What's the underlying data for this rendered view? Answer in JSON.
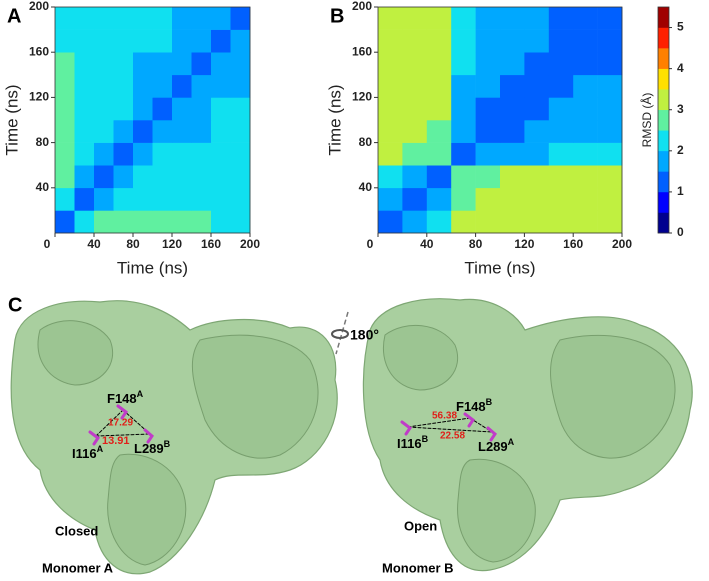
{
  "chart_data": [
    {
      "type": "heatmap",
      "panel_label": "A",
      "xlabel": "Time (ns)",
      "ylabel": "Time (ns)",
      "x": [
        10,
        30,
        50,
        70,
        90,
        110,
        130,
        150,
        170,
        190
      ],
      "y": [
        10,
        30,
        50,
        70,
        90,
        110,
        130,
        150,
        170,
        190
      ],
      "xlim": [
        0,
        200
      ],
      "ylim": [
        0,
        200
      ],
      "xticks": [
        0,
        40,
        80,
        120,
        160,
        200
      ],
      "yticks": [
        40,
        80,
        120,
        160,
        200
      ],
      "z": [
        [
          1.0,
          2.4,
          2.6,
          2.6,
          2.5,
          2.6,
          2.5,
          2.6,
          2.4,
          2.4
        ],
        [
          2.4,
          1.0,
          1.8,
          2.0,
          2.2,
          2.1,
          2.2,
          2.1,
          2.2,
          2.2
        ],
        [
          2.6,
          1.8,
          1.0,
          1.7,
          2.1,
          2.1,
          2.2,
          2.1,
          2.2,
          2.2
        ],
        [
          2.6,
          2.0,
          1.7,
          1.0,
          1.9,
          2.0,
          2.1,
          2.0,
          2.1,
          2.1
        ],
        [
          2.5,
          2.2,
          2.1,
          1.9,
          1.0,
          1.6,
          1.8,
          1.9,
          2.0,
          2.0
        ],
        [
          2.6,
          2.1,
          2.1,
          2.0,
          1.6,
          1.0,
          1.6,
          1.8,
          2.0,
          2.0
        ],
        [
          2.5,
          2.2,
          2.2,
          2.1,
          1.8,
          1.6,
          1.0,
          1.6,
          1.9,
          1.9
        ],
        [
          2.6,
          2.1,
          2.1,
          2.0,
          1.9,
          1.8,
          1.6,
          1.0,
          1.8,
          1.8
        ],
        [
          2.4,
          2.2,
          2.2,
          2.1,
          2.0,
          2.0,
          1.9,
          1.8,
          1.0,
          1.5
        ],
        [
          2.4,
          2.2,
          2.2,
          2.1,
          2.0,
          2.0,
          1.9,
          1.8,
          1.5,
          1.0
        ]
      ]
    },
    {
      "type": "heatmap",
      "panel_label": "B",
      "xlabel": "Time (ns)",
      "ylabel": "Time (ns)",
      "x": [
        10,
        30,
        50,
        70,
        90,
        110,
        130,
        150,
        170,
        190
      ],
      "y": [
        10,
        30,
        50,
        70,
        90,
        110,
        130,
        150,
        170,
        190
      ],
      "xlim": [
        0,
        200
      ],
      "ylim": [
        0,
        200
      ],
      "xticks": [
        0,
        40,
        80,
        120,
        160,
        200
      ],
      "yticks": [
        40,
        80,
        120,
        160,
        200
      ],
      "z": [
        [
          1.0,
          1.8,
          2.0,
          3.0,
          3.2,
          3.2,
          3.3,
          3.3,
          3.4,
          3.3
        ],
        [
          1.8,
          1.0,
          1.6,
          2.8,
          3.0,
          3.1,
          3.1,
          3.2,
          3.3,
          3.2
        ],
        [
          2.0,
          1.6,
          1.0,
          2.6,
          2.9,
          3.0,
          3.0,
          3.1,
          3.1,
          3.1
        ],
        [
          3.0,
          2.8,
          2.6,
          1.0,
          1.6,
          1.8,
          1.9,
          2.0,
          2.0,
          2.0
        ],
        [
          3.2,
          3.0,
          2.9,
          1.6,
          1.0,
          1.4,
          1.6,
          1.7,
          1.8,
          1.8
        ],
        [
          3.2,
          3.1,
          3.0,
          1.8,
          1.4,
          1.0,
          1.4,
          1.6,
          1.7,
          1.7
        ],
        [
          3.3,
          3.1,
          3.0,
          1.9,
          1.6,
          1.4,
          1.0,
          1.4,
          1.6,
          1.6
        ],
        [
          3.3,
          3.2,
          3.1,
          2.0,
          1.7,
          1.6,
          1.4,
          1.0,
          1.4,
          1.4
        ],
        [
          3.4,
          3.3,
          3.1,
          2.0,
          1.8,
          1.7,
          1.6,
          1.4,
          1.0,
          1.2
        ],
        [
          3.3,
          3.2,
          3.1,
          2.0,
          1.8,
          1.7,
          1.6,
          1.4,
          1.2,
          1.0
        ]
      ],
      "colorbar_label": "RMSD (Å)",
      "zlim": [
        0,
        5.5
      ],
      "zticks": [
        0,
        1,
        2,
        3,
        4,
        5
      ],
      "colorscale": [
        "#00008f",
        "#0000ff",
        "#0060ff",
        "#00a8ff",
        "#10e0f0",
        "#60f0a0",
        "#c0f040",
        "#ffe000",
        "#ff8000",
        "#ff2000",
        "#a00000"
      ]
    }
  ],
  "panel_c": {
    "panel_label": "C",
    "rotation": "180°",
    "monomer_a": {
      "state": "Closed",
      "name": "Monomer A",
      "residues": [
        {
          "residue": "F148",
          "chain": "A"
        },
        {
          "residue": "I116",
          "chain": "A"
        },
        {
          "residue": "L289",
          "chain": "B"
        }
      ],
      "distances": [
        "17.29",
        "13.91"
      ]
    },
    "monomer_b": {
      "state": "Open",
      "name": "Monomer B",
      "residues": [
        {
          "residue": "F148",
          "chain": "B"
        },
        {
          "residue": "I116",
          "chain": "B"
        },
        {
          "residue": "L289",
          "chain": "A"
        }
      ],
      "distances": [
        "56.38",
        "22.58"
      ]
    }
  }
}
